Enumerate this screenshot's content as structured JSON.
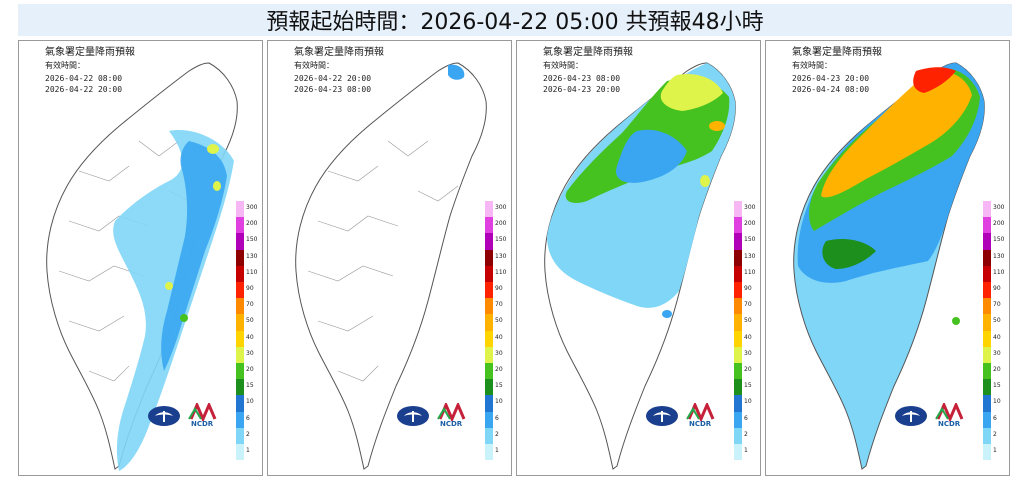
{
  "header": {
    "title": "預報起始時間：2026-04-22 05:00  共預報48小時"
  },
  "legend": {
    "levels": [
      "300",
      "200",
      "150",
      "130",
      "110",
      "90",
      "70",
      "50",
      "40",
      "30",
      "20",
      "15",
      "10",
      "6",
      "2",
      "1"
    ],
    "colors": [
      "#f7b7f5",
      "#e040e0",
      "#b000b8",
      "#8e0000",
      "#c60000",
      "#ff2200",
      "#ff8a00",
      "#ffb300",
      "#ffd400",
      "#dff44a",
      "#45c21f",
      "#1d8f1d",
      "#2176d2",
      "#3aa6f2",
      "#7fd6f7",
      "#c9f2fb"
    ]
  },
  "panels": [
    {
      "title": "氣象署定量降雨預報",
      "valid_label": "有效時間：",
      "start": "2026-04-22 08:00",
      "end": "2026-04-22 20:00",
      "logo_text": "NCDR"
    },
    {
      "title": "氣象署定量降雨預報",
      "valid_label": "有效時間：",
      "start": "2026-04-22 20:00",
      "end": "2026-04-23 08:00",
      "logo_text": "NCDR"
    },
    {
      "title": "氣象署定量降雨預報",
      "valid_label": "有效時間：",
      "start": "2026-04-23 08:00",
      "end": "2026-04-23 20:00",
      "logo_text": "NCDR"
    },
    {
      "title": "氣象署定量降雨預報",
      "valid_label": "有效時間：",
      "start": "2026-04-23 20:00",
      "end": "2026-04-24 08:00",
      "logo_text": "NCDR"
    }
  ]
}
